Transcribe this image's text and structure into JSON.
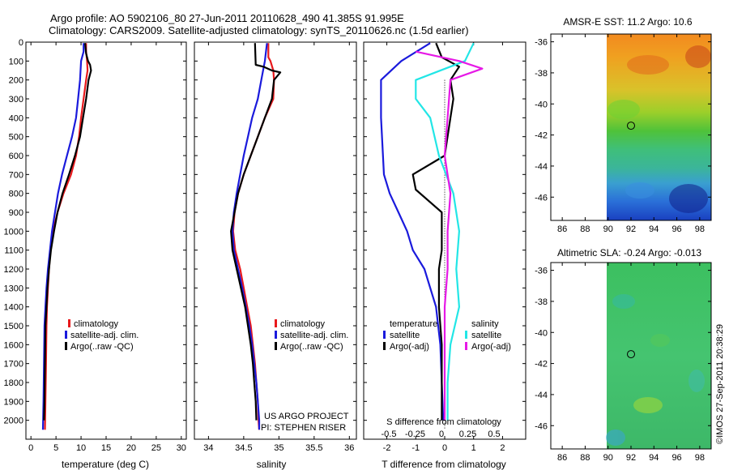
{
  "header": {
    "line1": "Argo profile: AO 5902106_80 27-Jun-2011 20110628_490 41.385S 91.995E",
    "line2": "Climatology: CARS2009. Satellite-adjusted climatology: synTS_20110626.nc (1.5d earlier)"
  },
  "side_stamp": "©IMOS 27-Sep-2011 20:38:29",
  "colors": {
    "red": "#e8191c",
    "blue": "#1a1adc",
    "black": "#000000",
    "cyan": "#22e6e6",
    "magenta": "#e619e6"
  },
  "chart_data": [
    {
      "type": "line",
      "id": "temperature",
      "xlabel": "temperature (deg C)",
      "ylabel": "",
      "xlim": [
        -1,
        31
      ],
      "ylim": [
        2100,
        0
      ],
      "xticks": [
        0,
        5,
        10,
        15,
        20,
        25,
        30
      ],
      "yticks": [
        0,
        100,
        200,
        300,
        400,
        500,
        600,
        700,
        800,
        900,
        1000,
        1100,
        1200,
        1300,
        1400,
        1500,
        1600,
        1700,
        1800,
        1900,
        2000
      ],
      "legend": [
        "climatology",
        "satellite-adj. clim.",
        "Argo(..raw -QC)"
      ],
      "series": [
        {
          "name": "climatology",
          "color": "red",
          "points": [
            [
              11,
              5
            ],
            [
              11,
              50
            ],
            [
              11.2,
              100
            ],
            [
              11.3,
              150
            ],
            [
              11,
              200
            ],
            [
              10.5,
              300
            ],
            [
              10,
              400
            ],
            [
              9.6,
              500
            ],
            [
              9,
              600
            ],
            [
              8,
              700
            ],
            [
              6.5,
              800
            ],
            [
              5.3,
              900
            ],
            [
              4.4,
              1000
            ],
            [
              3.9,
              1100
            ],
            [
              3.6,
              1200
            ],
            [
              3.4,
              1300
            ],
            [
              3.2,
              1400
            ],
            [
              3.1,
              1500
            ],
            [
              3,
              1700
            ],
            [
              2.9,
              1900
            ],
            [
              2.8,
              2050
            ]
          ]
        },
        {
          "name": "satellite-adj. clim.",
          "color": "blue",
          "points": [
            [
              10.5,
              5
            ],
            [
              10.5,
              50
            ],
            [
              10,
              100
            ],
            [
              9.8,
              200
            ],
            [
              9.4,
              300
            ],
            [
              9,
              400
            ],
            [
              8.2,
              500
            ],
            [
              7.2,
              600
            ],
            [
              6.2,
              700
            ],
            [
              5.4,
              800
            ],
            [
              4.8,
              900
            ],
            [
              4.2,
              1000
            ],
            [
              3.8,
              1100
            ],
            [
              3.4,
              1200
            ],
            [
              3.1,
              1300
            ],
            [
              2.9,
              1400
            ],
            [
              2.7,
              1500
            ],
            [
              2.6,
              1700
            ],
            [
              2.5,
              1900
            ],
            [
              2.4,
              2050
            ]
          ]
        },
        {
          "name": "Argo(..raw -QC)",
          "color": "black",
          "points": [
            [
              10.8,
              5
            ],
            [
              11,
              60
            ],
            [
              11.4,
              100
            ],
            [
              11.8,
              120
            ],
            [
              12,
              150
            ],
            [
              11.5,
              200
            ],
            [
              11,
              300
            ],
            [
              10.4,
              400
            ],
            [
              9.8,
              500
            ],
            [
              8.8,
              600
            ],
            [
              7.6,
              700
            ],
            [
              6.3,
              800
            ],
            [
              5.3,
              900
            ],
            [
              4.6,
              1000
            ],
            [
              4,
              1100
            ],
            [
              3.6,
              1200
            ],
            [
              3.3,
              1300
            ],
            [
              3.1,
              1400
            ],
            [
              2.9,
              1500
            ],
            [
              2.8,
              1700
            ],
            [
              2.7,
              1900
            ],
            [
              2.6,
              2000
            ]
          ]
        }
      ]
    },
    {
      "type": "line",
      "id": "salinity",
      "xlabel": "salinity",
      "xlim": [
        33.8,
        36.1
      ],
      "ylim": [
        2100,
        0
      ],
      "xticks": [
        34,
        34.5,
        35,
        35.5,
        36
      ],
      "xticklabels": [
        "34",
        "34.5",
        "35",
        "35.5",
        "36"
      ],
      "legend": [
        "climatology",
        "satellite-adj. clim.",
        "Argo(..raw -QC)"
      ],
      "annotation": [
        "US ARGO PROJECT",
        "PI: STEPHEN RISER"
      ],
      "series": [
        {
          "name": "climatology",
          "color": "red",
          "points": [
            [
              34.85,
              5
            ],
            [
              34.85,
              80
            ],
            [
              34.88,
              100
            ],
            [
              34.92,
              150
            ],
            [
              34.93,
              200
            ],
            [
              34.92,
              300
            ],
            [
              34.8,
              400
            ],
            [
              34.7,
              500
            ],
            [
              34.6,
              600
            ],
            [
              34.5,
              700
            ],
            [
              34.42,
              800
            ],
            [
              34.37,
              900
            ],
            [
              34.35,
              1000
            ],
            [
              34.38,
              1100
            ],
            [
              34.45,
              1200
            ],
            [
              34.5,
              1300
            ],
            [
              34.55,
              1400
            ],
            [
              34.6,
              1500
            ],
            [
              34.63,
              1600
            ],
            [
              34.66,
              1700
            ],
            [
              34.68,
              1800
            ],
            [
              34.7,
              1900
            ],
            [
              34.71,
              2000
            ],
            [
              34.72,
              2050
            ]
          ]
        },
        {
          "name": "satellite-adj. clim.",
          "color": "blue",
          "points": [
            [
              34.83,
              5
            ],
            [
              34.8,
              100
            ],
            [
              34.75,
              200
            ],
            [
              34.7,
              300
            ],
            [
              34.62,
              400
            ],
            [
              34.56,
              500
            ],
            [
              34.5,
              600
            ],
            [
              34.45,
              700
            ],
            [
              34.4,
              800
            ],
            [
              34.36,
              900
            ],
            [
              34.34,
              1000
            ],
            [
              34.36,
              1100
            ],
            [
              34.42,
              1200
            ],
            [
              34.48,
              1300
            ],
            [
              34.53,
              1400
            ],
            [
              34.58,
              1500
            ],
            [
              34.62,
              1600
            ],
            [
              34.65,
              1700
            ],
            [
              34.68,
              1800
            ],
            [
              34.7,
              1900
            ],
            [
              34.72,
              2000
            ],
            [
              34.72,
              2050
            ]
          ]
        },
        {
          "name": "Argo(..raw -QC)",
          "color": "black",
          "points": [
            [
              34.66,
              5
            ],
            [
              34.67,
              120
            ],
            [
              34.78,
              130
            ],
            [
              34.9,
              150
            ],
            [
              35.02,
              160
            ],
            [
              34.93,
              200
            ],
            [
              34.9,
              300
            ],
            [
              34.8,
              400
            ],
            [
              34.7,
              500
            ],
            [
              34.6,
              600
            ],
            [
              34.5,
              700
            ],
            [
              34.42,
              800
            ],
            [
              34.37,
              900
            ],
            [
              34.32,
              1000
            ],
            [
              34.34,
              1100
            ],
            [
              34.4,
              1200
            ],
            [
              34.46,
              1300
            ],
            [
              34.52,
              1400
            ],
            [
              34.56,
              1500
            ],
            [
              34.6,
              1600
            ],
            [
              34.63,
              1700
            ],
            [
              34.65,
              1800
            ],
            [
              34.67,
              1900
            ],
            [
              34.68,
              2000
            ]
          ]
        }
      ]
    },
    {
      "type": "line",
      "id": "differences",
      "xlabel": "T difference from climatology",
      "top_axis_label": "S difference from climatology",
      "xlim": [
        -2.8,
        2.8
      ],
      "ylim": [
        2100,
        0
      ],
      "xticks": [
        -2,
        -1,
        0,
        1,
        2
      ],
      "xticklabels": [
        "-2",
        "-1",
        "0",
        "1",
        "2"
      ],
      "s_ticks": [
        -0.5,
        -0.25,
        0,
        0.25,
        0.5
      ],
      "s_ticklabels": [
        "-0.5",
        "-0.25",
        "0",
        "0.25",
        "0.5"
      ],
      "legend_groups": [
        {
          "title": "temperature",
          "items": [
            "satellite",
            "Argo(-adj)"
          ]
        },
        {
          "title": "salinity",
          "items": [
            "satellite",
            "Argo(-adj)"
          ]
        }
      ],
      "series": [
        {
          "name": "temperature satellite",
          "color": "blue",
          "points": [
            [
              -0.5,
              5
            ],
            [
              -1.5,
              100
            ],
            [
              -2.2,
              200
            ],
            [
              -2.2,
              400
            ],
            [
              -2.1,
              700
            ],
            [
              -1.9,
              800
            ],
            [
              -1.6,
              900
            ],
            [
              -1.3,
              1000
            ],
            [
              -1.1,
              1100
            ],
            [
              -0.7,
              1200
            ],
            [
              -0.3,
              1400
            ],
            [
              -0.15,
              1600
            ],
            [
              -0.1,
              1800
            ],
            [
              -0.05,
              2000
            ]
          ]
        },
        {
          "name": "temperature Argo(-adj)",
          "color": "black",
          "points": [
            [
              -0.3,
              5
            ],
            [
              -0.1,
              80
            ],
            [
              0.5,
              130
            ],
            [
              0.2,
              200
            ],
            [
              0.3,
              300
            ],
            [
              0.2,
              400
            ],
            [
              0,
              600
            ],
            [
              -1.1,
              700
            ],
            [
              -1,
              780
            ],
            [
              -0.1,
              900
            ],
            [
              -0.1,
              1100
            ],
            [
              -0.2,
              1200
            ],
            [
              -0.2,
              1400
            ],
            [
              -0.1,
              1600
            ],
            [
              -0.1,
              2000
            ]
          ]
        },
        {
          "name": "salinity satellite",
          "color": "cyan",
          "points": [
            [
              1,
              5
            ],
            [
              0.7,
              100
            ],
            [
              -1,
              200
            ],
            [
              -1,
              300
            ],
            [
              -0.5,
              400
            ],
            [
              -0.2,
              600
            ],
            [
              0.3,
              800
            ],
            [
              0.5,
              1000
            ],
            [
              0.4,
              1200
            ],
            [
              0.5,
              1400
            ],
            [
              0.2,
              1600
            ],
            [
              0.1,
              1800
            ],
            [
              0.1,
              2000
            ]
          ]
        },
        {
          "name": "salinity Argo(-adj)",
          "color": "magenta",
          "points": [
            [
              -1,
              50
            ],
            [
              0.5,
              100
            ],
            [
              1.3,
              140
            ],
            [
              0.2,
              200
            ],
            [
              0.1,
              400
            ],
            [
              0,
              600
            ],
            [
              0.2,
              800
            ],
            [
              0.1,
              1000
            ],
            [
              0.1,
              1200
            ],
            [
              0,
              1400
            ],
            [
              0,
              1600
            ],
            [
              0,
              2000
            ]
          ]
        }
      ]
    },
    {
      "type": "heatmap",
      "id": "sst_map",
      "title": "AMSR-E SST: 11.2  Argo: 10.6",
      "xlim": [
        85,
        99
      ],
      "ylim": [
        -47.5,
        -35.5
      ],
      "xticks": [
        86,
        88,
        90,
        92,
        94,
        96,
        98
      ],
      "yticks": [
        -36,
        -38,
        -40,
        -42,
        -44,
        -46
      ],
      "xticklabels": [
        "86",
        "88",
        "90",
        "92",
        "94",
        "96",
        "98"
      ],
      "yticklabels": [
        "-36",
        "-38",
        "-40",
        "-42",
        "-44",
        "-46"
      ],
      "data_xlim": [
        90,
        99
      ],
      "float_position": [
        92,
        -41.4
      ]
    },
    {
      "type": "heatmap",
      "id": "sla_map",
      "title": "Altimetric SLA: -0.24  Argo: -0.013",
      "xlim": [
        85,
        99
      ],
      "ylim": [
        -47.5,
        -35.5
      ],
      "xticks": [
        86,
        88,
        90,
        92,
        94,
        96,
        98
      ],
      "yticks": [
        -36,
        -38,
        -40,
        -42,
        -44,
        -46
      ],
      "xticklabels": [
        "86",
        "88",
        "90",
        "92",
        "94",
        "96",
        "98"
      ],
      "yticklabels": [
        "-36",
        "-38",
        "-40",
        "-42",
        "-44",
        "-46"
      ],
      "data_xlim": [
        90,
        99
      ],
      "float_position": [
        92,
        -41.4
      ]
    }
  ]
}
